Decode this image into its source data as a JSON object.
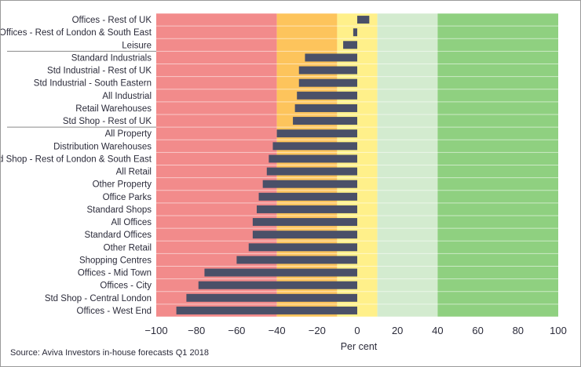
{
  "chart_data": {
    "type": "bar",
    "orientation": "horizontal",
    "categories": [
      "Offices - Rest of UK",
      "Offices - Rest of London & South East",
      "Leisure",
      "Standard Industrials",
      "Std Industrial - Rest of UK",
      "Std Industrial - South Eastern",
      "All Industrial",
      "Retail Warehouses",
      "Std Shop - Rest of UK",
      "All Property",
      "Distribution Warehouses",
      "Std Shop - Rest of London & South East",
      "All Retail",
      "Other Property",
      "Office Parks",
      "Standard Shops",
      "All Offices",
      "Standard Offices",
      "Other Retail",
      "Shopping Centres",
      "Offices - Mid Town",
      "Offices - City",
      "Std Shop - Central London",
      "Offices - West End"
    ],
    "values": [
      6,
      -2,
      -7,
      -26,
      -29,
      -29,
      -30,
      -31,
      -32,
      -40,
      -42,
      -44,
      -45,
      -47,
      -49,
      -50,
      -52,
      -52,
      -54,
      -60,
      -76,
      -79,
      -85,
      -90
    ],
    "group_separators_after": [
      2,
      8
    ],
    "xlabel": "Per cent",
    "ylabel": "",
    "xlim": [
      -100,
      100
    ],
    "xticks": [
      -100,
      -80,
      -60,
      -40,
      -20,
      0,
      20,
      40,
      60,
      80,
      100
    ],
    "grid": true,
    "legend": "none",
    "background_bands": [
      {
        "from": -100,
        "to": -40,
        "color": "#f28b8b"
      },
      {
        "from": -40,
        "to": -10,
        "color": "#fdc45c"
      },
      {
        "from": -10,
        "to": 10,
        "color": "#fff08a"
      },
      {
        "from": 10,
        "to": 40,
        "color": "#d3ebcf"
      },
      {
        "from": 40,
        "to": 100,
        "color": "#8fd080"
      }
    ],
    "bar_color": "#4a5068"
  },
  "footer": {
    "source": "Source: Aviva Investors in-house forecasts Q1 2018"
  }
}
